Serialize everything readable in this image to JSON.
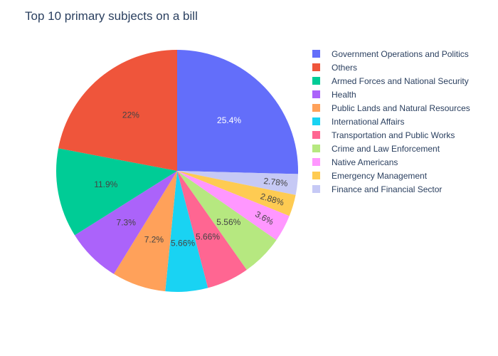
{
  "chart_data": {
    "type": "pie",
    "title": "Top 10 primary subjects on a bill",
    "legend_position": "right",
    "direction": "clockwise",
    "labels": [
      "Government Operations and Politics",
      "Others",
      "Armed Forces and National Security",
      "Health",
      "Public Lands and Natural Resources",
      "International Affairs",
      "Transportation and Public Works",
      "Crime and Law Enforcement",
      "Native Americans",
      "Emergency Management",
      "Finance and Financial Sector"
    ],
    "values": [
      25.4,
      22,
      11.9,
      7.3,
      7.2,
      5.66,
      5.66,
      5.56,
      3.6,
      2.88,
      2.78
    ],
    "value_labels": [
      "25.4%",
      "22%",
      "11.9%",
      "7.3%",
      "7.2%",
      "5.66%",
      "5.66%",
      "5.56%",
      "3.6%",
      "2.88%",
      "2.78%"
    ],
    "slice_order": [
      0,
      10,
      9,
      8,
      7,
      6,
      5,
      4,
      3,
      2,
      1
    ],
    "colors": [
      "#636efa",
      "#ef553b",
      "#00cc96",
      "#ab63fa",
      "#ffa15a",
      "#19d3f3",
      "#ff6692",
      "#b6e880",
      "#ff97ff",
      "#fecb52",
      "#c6c9f5"
    ],
    "label_text_colors": [
      "#ffffff",
      "#444444",
      "#444444",
      "#444444",
      "#444444",
      "#444444",
      "#444444",
      "#444444",
      "#444444",
      "#444444",
      "#444444"
    ]
  }
}
